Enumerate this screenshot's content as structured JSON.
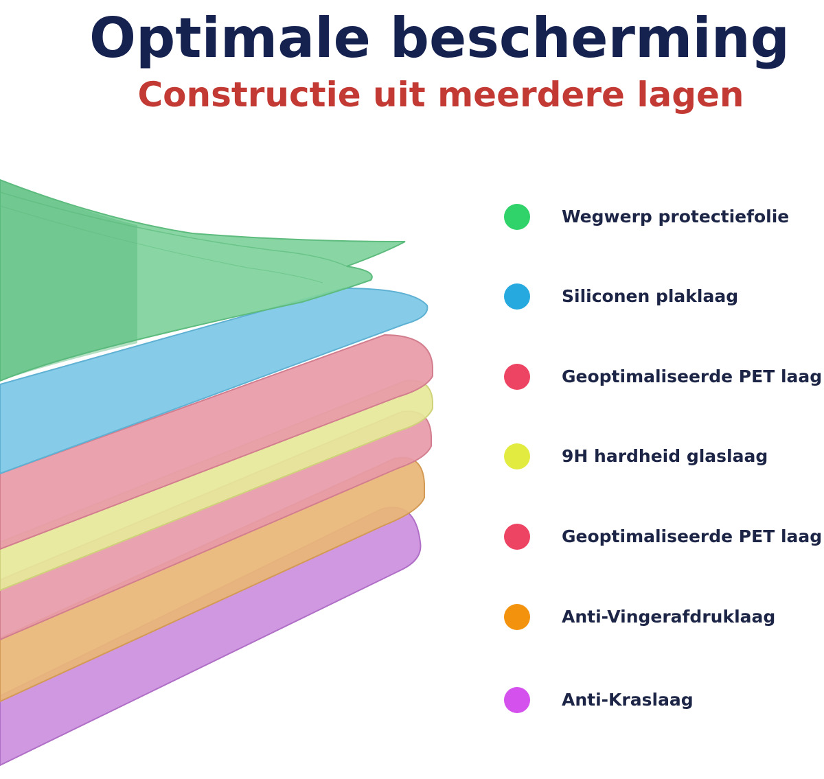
{
  "header": {
    "title": "Optimale bescherming",
    "subtitle": "Constructie uit meerdere lagen"
  },
  "colors": {
    "title": "#15214f",
    "subtitle": "#c23a33",
    "label_text": "#1d2547"
  },
  "layers": [
    {
      "label": "Wegwerp protectiefolie",
      "color": "#2fd36a",
      "sheet_color": "#7fd39c"
    },
    {
      "label": "Siliconen plaklaag",
      "color": "#25a9df",
      "sheet_color": "#7cc8e6"
    },
    {
      "label": "Geoptimaliseerde PET laag",
      "color": "#ee4463",
      "sheet_color": "#e89aa8"
    },
    {
      "label": "9H hardheid glaslaag",
      "color": "#e2eb3f",
      "sheet_color": "#e6e89a"
    },
    {
      "label": "Geoptimaliseerde PET laag",
      "color": "#ee4463",
      "sheet_color": "#e79aa8"
    },
    {
      "label": "Anti-Vingerafdruklaag",
      "color": "#f2920d",
      "sheet_color": "#e9b676"
    },
    {
      "label": "Anti-Kraslaag",
      "color": "#d451ee",
      "sheet_color": "#cb8fde"
    }
  ]
}
